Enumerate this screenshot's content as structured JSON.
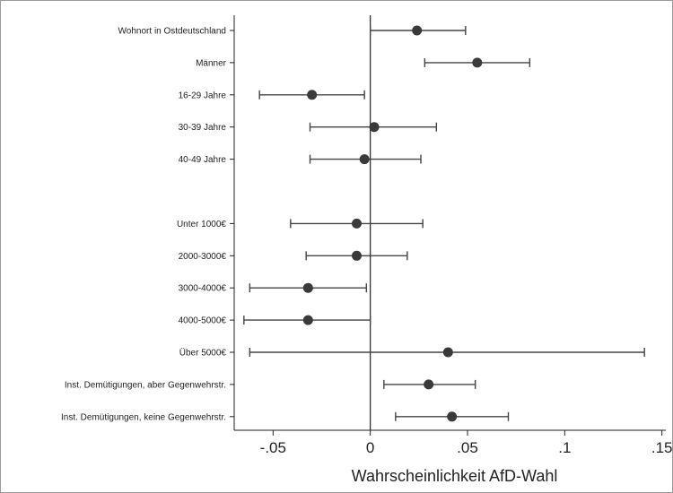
{
  "chart_data": {
    "type": "scatter",
    "subtype": "coefficient-plot",
    "title": "",
    "xlabel": "Wahrscheinlichkeit AfD-Wahl",
    "ylabel": "",
    "xlim": [
      -0.07,
      0.152
    ],
    "x_ticks": [
      -0.05,
      0,
      0.05,
      0.1,
      0.15
    ],
    "x_tick_labels": [
      "-.05",
      "0",
      ".05",
      ".1",
      ".15"
    ],
    "reference_line": 0,
    "grid": false,
    "marker_color": "#3a3a3a",
    "line_color": "#444444",
    "rows": [
      {
        "label": "Wohnort in Ostdeutschland",
        "estimate": 0.024,
        "ci_low": 0.0,
        "ci_high": 0.049
      },
      {
        "label": "Männer",
        "estimate": 0.055,
        "ci_low": 0.028,
        "ci_high": 0.082
      },
      {
        "label": "16-29 Jahre",
        "estimate": -0.03,
        "ci_low": -0.057,
        "ci_high": -0.003
      },
      {
        "label": "30-39 Jahre",
        "estimate": 0.002,
        "ci_low": -0.031,
        "ci_high": 0.034
      },
      {
        "label": "40-49 Jahre",
        "estimate": -0.003,
        "ci_low": -0.031,
        "ci_high": 0.026
      },
      {
        "label": "",
        "gap": true
      },
      {
        "label": "Unter 1000€",
        "estimate": -0.007,
        "ci_low": -0.041,
        "ci_high": 0.027
      },
      {
        "label": "2000-3000€",
        "estimate": -0.007,
        "ci_low": -0.033,
        "ci_high": 0.019
      },
      {
        "label": "3000-4000€",
        "estimate": -0.032,
        "ci_low": -0.062,
        "ci_high": -0.002
      },
      {
        "label": "4000-5000€",
        "estimate": -0.032,
        "ci_low": -0.065,
        "ci_high": 0.0
      },
      {
        "label": "Über 5000€",
        "estimate": 0.04,
        "ci_low": -0.062,
        "ci_high": 0.141
      },
      {
        "label": "Inst. Demütigungen, aber Gegenwehrstr.",
        "estimate": 0.03,
        "ci_low": 0.007,
        "ci_high": 0.054
      },
      {
        "label": "Inst. Demütigungen, keine Gegenwehrstr.",
        "estimate": 0.042,
        "ci_low": 0.013,
        "ci_high": 0.071
      }
    ]
  }
}
